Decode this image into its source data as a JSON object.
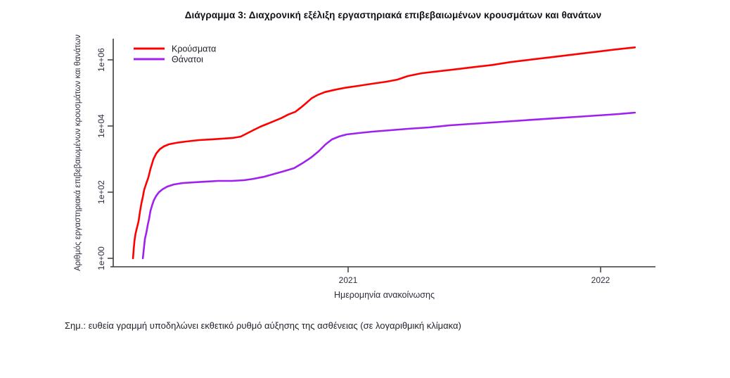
{
  "title": "Διάγραμμα 3: Διαχρονική εξέλιξη εργαστηριακά επιβεβαιωμένων κρουσμάτων και θανάτων",
  "footnote": "Σημ.: ευθεία γραμμή υποδηλώνει εκθετικό ρυθμό αύξησης της ασθένειας (σε λογαριθμική κλίμακα)",
  "chart_data": {
    "type": "line",
    "title": "Διάγραμμα 3: Διαχρονική εξέλιξη εργαστηριακά επιβεβαιωμένων κρουσμάτων και θανάτων",
    "xlabel": "Ημερομηνία ανακοίνωσης",
    "ylabel": "Αριθμός εργαστηριακά επιβεβαιωμένων κρουσμάτων και θανάτων",
    "x_scale": "time-decimal-years",
    "y_scale": "log10",
    "grid": false,
    "legend_position": "top-left-inside",
    "x_ticks": [
      {
        "label": "2021",
        "year": 2021
      },
      {
        "label": "2022",
        "year": 2022
      }
    ],
    "y_ticks": [
      {
        "label": "1e+00",
        "value": 1
      },
      {
        "label": "1e+02",
        "value": 100
      },
      {
        "label": "1e+04",
        "value": 10000
      },
      {
        "label": "1e+06",
        "value": 1000000
      }
    ],
    "x_range_years": [
      2020.07,
      2022.22
    ],
    "y_range": [
      0.56,
      4400000
    ],
    "axis_color": "#3c3c3c",
    "series": [
      {
        "name": "Κρούσματα",
        "color": "#ff0000",
        "points": [
          [
            2020.148,
            1
          ],
          [
            2020.151,
            2
          ],
          [
            2020.154,
            3.5
          ],
          [
            2020.158,
            5.5
          ],
          [
            2020.163,
            8
          ],
          [
            2020.17,
            13
          ],
          [
            2020.176,
            27
          ],
          [
            2020.181,
            45
          ],
          [
            2020.187,
            72
          ],
          [
            2020.192,
            116
          ],
          [
            2020.201,
            190
          ],
          [
            2020.209,
            280
          ],
          [
            2020.217,
            500
          ],
          [
            2020.229,
            1000
          ],
          [
            2020.24,
            1480
          ],
          [
            2020.254,
            1990
          ],
          [
            2020.27,
            2420
          ],
          [
            2020.29,
            2800
          ],
          [
            2020.318,
            3080
          ],
          [
            2020.359,
            3400
          ],
          [
            2020.41,
            3750
          ],
          [
            2020.457,
            3930
          ],
          [
            2020.499,
            4120
          ],
          [
            2020.54,
            4330
          ],
          [
            2020.574,
            4770
          ],
          [
            2020.596,
            5810
          ],
          [
            2020.624,
            7440
          ],
          [
            2020.652,
            9540
          ],
          [
            2020.68,
            11600
          ],
          [
            2020.708,
            14200
          ],
          [
            2020.735,
            17300
          ],
          [
            2020.763,
            22200
          ],
          [
            2020.791,
            26900
          ],
          [
            2020.813,
            36200
          ],
          [
            2020.833,
            48600
          ],
          [
            2020.855,
            68200
          ],
          [
            2020.88,
            87000
          ],
          [
            2020.908,
            106000
          ],
          [
            2020.944,
            123000
          ],
          [
            2020.986,
            142000
          ],
          [
            2021.042,
            164000
          ],
          [
            2021.097,
            190000
          ],
          [
            2021.153,
            219000
          ],
          [
            2021.195,
            253000
          ],
          [
            2021.237,
            324000
          ],
          [
            2021.292,
            394000
          ],
          [
            2021.362,
            455000
          ],
          [
            2021.432,
            525000
          ],
          [
            2021.501,
            606000
          ],
          [
            2021.571,
            700000
          ],
          [
            2021.641,
            850000
          ],
          [
            2021.71,
            985000
          ],
          [
            2021.78,
            1140000
          ],
          [
            2021.85,
            1320000
          ],
          [
            2021.919,
            1530000
          ],
          [
            2021.989,
            1770000
          ],
          [
            2022.058,
            2050000
          ],
          [
            2022.136,
            2380000
          ]
        ]
      },
      {
        "name": "Θάνατοι",
        "color": "#a020f0",
        "points": [
          [
            2020.187,
            1
          ],
          [
            2020.192,
            2.3
          ],
          [
            2020.195,
            3.8
          ],
          [
            2020.201,
            6.1
          ],
          [
            2020.206,
            10
          ],
          [
            2020.212,
            16
          ],
          [
            2020.217,
            27
          ],
          [
            2020.223,
            39
          ],
          [
            2020.231,
            58
          ],
          [
            2020.24,
            78
          ],
          [
            2020.251,
            100
          ],
          [
            2020.265,
            122
          ],
          [
            2020.284,
            148
          ],
          [
            2020.31,
            171
          ],
          [
            2020.346,
            189
          ],
          [
            2020.387,
            198
          ],
          [
            2020.435,
            208
          ],
          [
            2020.485,
            219
          ],
          [
            2020.54,
            219
          ],
          [
            2020.588,
            230
          ],
          [
            2020.624,
            253
          ],
          [
            2020.666,
            291
          ],
          [
            2020.708,
            358
          ],
          [
            2020.749,
            437
          ],
          [
            2020.786,
            531
          ],
          [
            2020.819,
            748
          ],
          [
            2020.852,
            1100
          ],
          [
            2020.883,
            1710
          ],
          [
            2020.911,
            2800
          ],
          [
            2020.936,
            3940
          ],
          [
            2020.964,
            4810
          ],
          [
            2020.994,
            5560
          ],
          [
            2021.042,
            6130
          ],
          [
            2021.097,
            6760
          ],
          [
            2021.167,
            7460
          ],
          [
            2021.237,
            8230
          ],
          [
            2021.32,
            9070
          ],
          [
            2021.404,
            10500
          ],
          [
            2021.487,
            11600
          ],
          [
            2021.571,
            12800
          ],
          [
            2021.654,
            14100
          ],
          [
            2021.738,
            15600
          ],
          [
            2021.822,
            17200
          ],
          [
            2021.905,
            18900
          ],
          [
            2021.989,
            20900
          ],
          [
            2022.072,
            23000
          ],
          [
            2022.136,
            25400
          ]
        ]
      }
    ]
  }
}
